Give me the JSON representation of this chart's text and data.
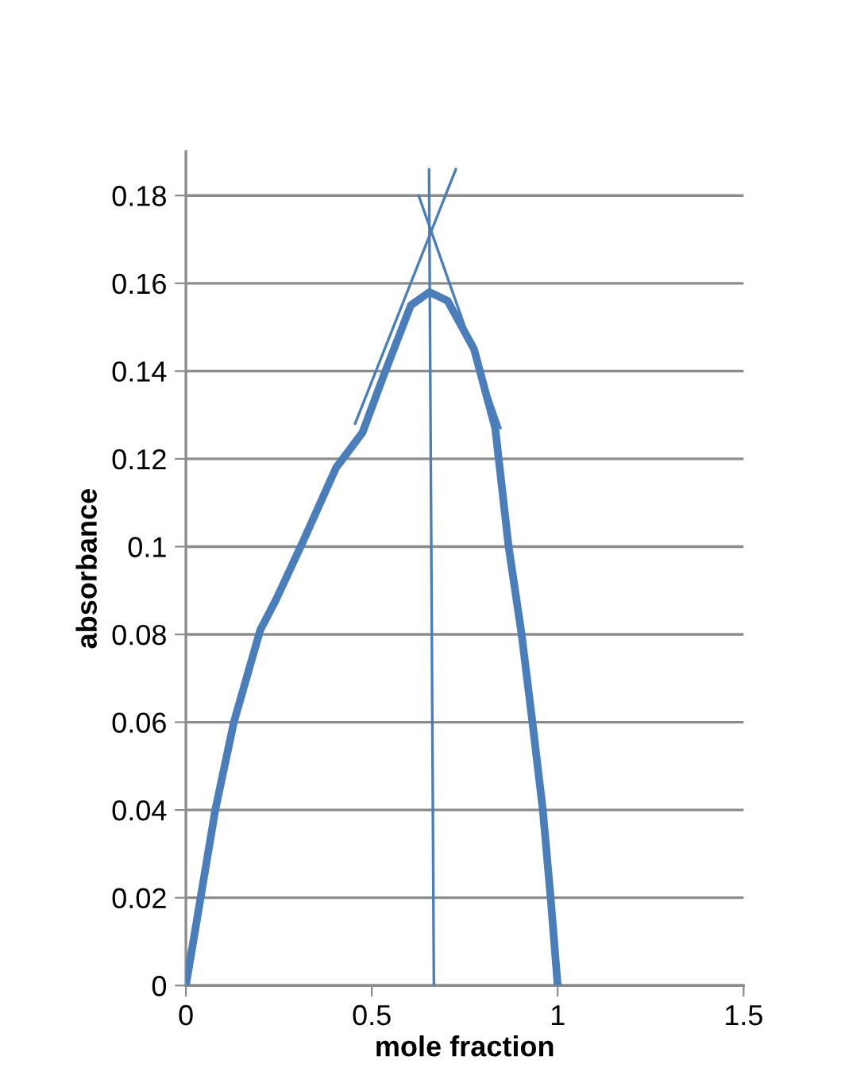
{
  "chart_data": {
    "type": "line",
    "xlabel": "mole fraction",
    "ylabel": "absorbance",
    "xlim": [
      0,
      1.5
    ],
    "xticks": [
      0,
      0.5,
      1,
      1.5
    ],
    "ylim": [
      0,
      0.19
    ],
    "yticks": [
      0,
      0.02,
      0.04,
      0.06,
      0.08,
      0.1,
      0.12,
      0.14,
      0.16,
      0.18
    ],
    "grid": "y",
    "legend": false,
    "marker": "none",
    "line_style": "solid",
    "series": [
      {
        "color": "#4a7ebb",
        "x": [
          0,
          0.079,
          0.129,
          0.2,
          0.243,
          0.314,
          0.404,
          0.475,
          0.532,
          0.605,
          0.655,
          0.704,
          0.775,
          0.832,
          0.868,
          0.903,
          0.932,
          0.96,
          0.981,
          1
        ],
        "values": [
          0,
          0.04,
          0.06,
          0.081,
          0.088,
          0.101,
          0.118,
          0.126,
          0.139,
          0.155,
          0.158,
          0.156,
          0.145,
          0.127,
          0.1,
          0.08,
          0.06,
          0.04,
          0.02,
          0
        ]
      },
      {
        "color": "#4a7ebb",
        "x": [
          0.455,
          0.726
        ],
        "values": [
          0.128,
          0.186
        ]
      },
      {
        "color": "#4a7ebb",
        "x": [
          0.626,
          0.846
        ],
        "values": [
          0.18,
          0.127
        ]
      },
      {
        "color": "#4a7ebb",
        "x": [
          0.654,
          0.667
        ],
        "values": [
          0.186,
          0
        ]
      }
    ]
  }
}
